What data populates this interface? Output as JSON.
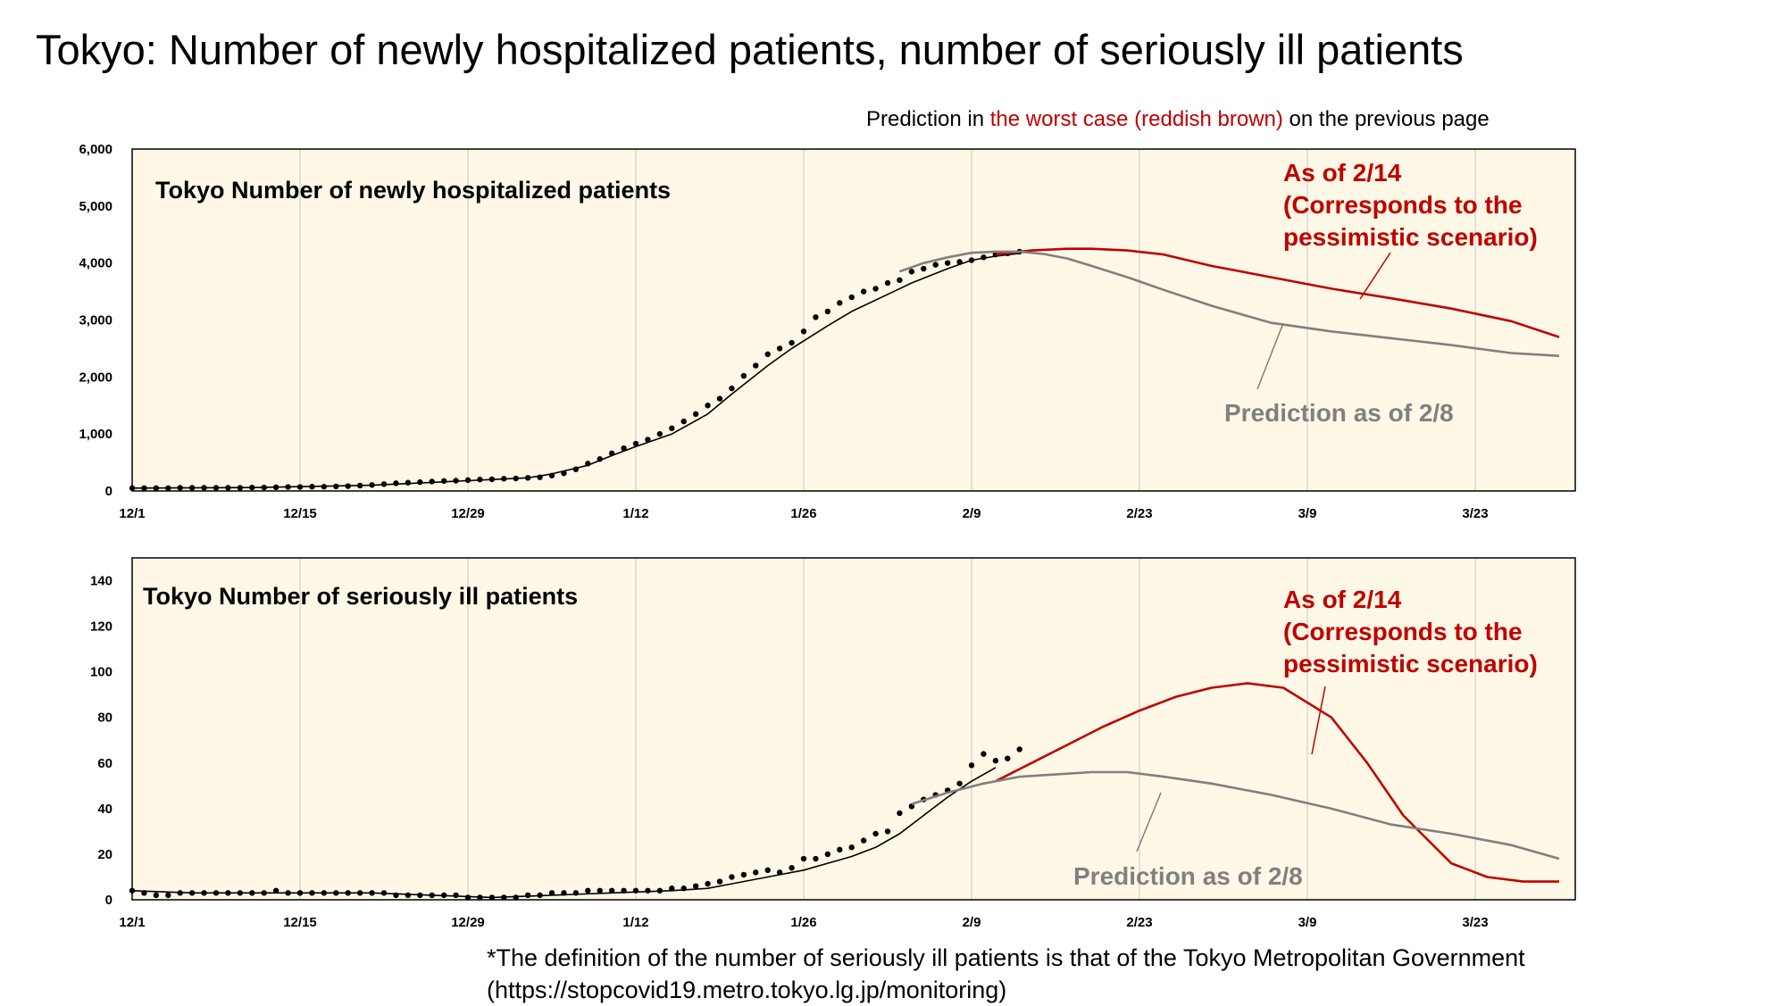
{
  "page": {
    "title": "Tokyo: Number of newly hospitalized patients, number of seriously ill patients",
    "subtitle_prefix": "Prediction in ",
    "subtitle_highlight": "the worst case (reddish brown)",
    "subtitle_suffix": " on the previous page",
    "footnote_line1": "*The definition of the number of seriously ill patients is that of the Tokyo Metropolitan Government",
    "footnote_line2": "(https://stopcovid19.metro.tokyo.lg.jp/monitoring)"
  },
  "colors": {
    "plot_background": "#fff8e6",
    "actual_points": "#000000",
    "fit_line": "#000000",
    "worst_case_line": "#c00000",
    "prediction_2_8_line": "#808080",
    "gridline": "#d0d0d0"
  },
  "chart_data": [
    {
      "type": "line",
      "title": "Tokyo  Number of newly hospitalized patients",
      "xlabel": "",
      "ylabel": "",
      "x_ticks": [
        "12/1",
        "12/15",
        "12/29",
        "1/12",
        "1/26",
        "2/9",
        "2/23",
        "3/9",
        "3/23"
      ],
      "y_ticks": [
        "0",
        "1,000",
        "2,000",
        "3,000",
        "4,000",
        "5,000",
        "6,000"
      ],
      "ylim": [
        0,
        6000
      ],
      "x_range_days_from_12_1": [
        0,
        119
      ],
      "grid": true,
      "annotations": [
        {
          "text": [
            "As of 2/14",
            "(Corresponds to the",
            "pessimistic scenario)"
          ],
          "color": "#c00000",
          "points_to": "As of 2/14"
        },
        {
          "text": [
            "Prediction as of 2/8"
          ],
          "color": "#808080",
          "points_to": "Prediction as of 2/8"
        }
      ],
      "series": [
        {
          "style": "points",
          "color": "#000000",
          "x": [
            0,
            1,
            2,
            3,
            4,
            5,
            6,
            7,
            8,
            9,
            10,
            11,
            12,
            13,
            14,
            15,
            16,
            17,
            18,
            19,
            20,
            21,
            22,
            23,
            24,
            25,
            26,
            27,
            28,
            29,
            30,
            31,
            32,
            33,
            34,
            35,
            36,
            37,
            38,
            39,
            40,
            41,
            42,
            43,
            44,
            45,
            46,
            47,
            48,
            49,
            50,
            51,
            52,
            53,
            54,
            55,
            56,
            57,
            58,
            59,
            60,
            61,
            62,
            63,
            64,
            65,
            66,
            67,
            68,
            69,
            70,
            71,
            72,
            73,
            74
          ],
          "values": [
            50,
            50,
            50,
            50,
            55,
            55,
            55,
            55,
            55,
            55,
            60,
            60,
            65,
            70,
            70,
            75,
            75,
            80,
            85,
            95,
            105,
            120,
            135,
            145,
            155,
            165,
            175,
            180,
            190,
            200,
            205,
            215,
            220,
            230,
            240,
            270,
            310,
            380,
            480,
            560,
            660,
            750,
            830,
            900,
            1000,
            1100,
            1220,
            1350,
            1500,
            1620,
            1800,
            2020,
            2200,
            2400,
            2500,
            2600,
            2800,
            3050,
            3150,
            3300,
            3400,
            3500,
            3550,
            3650,
            3700,
            3850,
            3900,
            3970,
            4000,
            4020,
            4050,
            4100,
            4150,
            4170,
            4200
          ]
        },
        {
          "name": "As of 2/14",
          "style": "line",
          "color": "#000000",
          "x": [
            0,
            10,
            20,
            25,
            30,
            33,
            35,
            38,
            40,
            42,
            45,
            48,
            50,
            53,
            55,
            58,
            60,
            63,
            65,
            68,
            70,
            72,
            74
          ],
          "values": [
            50,
            60,
            100,
            150,
            200,
            230,
            300,
            450,
            620,
            780,
            1000,
            1350,
            1700,
            2200,
            2500,
            2900,
            3150,
            3450,
            3650,
            3900,
            4050,
            4120,
            4170
          ]
        },
        {
          "name": "As of 2/14",
          "style": "line",
          "color": "#c00000",
          "x": [
            72,
            75,
            78,
            80,
            83,
            86,
            90,
            95,
            100,
            105,
            110,
            115,
            119
          ],
          "values": [
            4150,
            4220,
            4250,
            4250,
            4220,
            4150,
            3950,
            3750,
            3550,
            3380,
            3200,
            2980,
            2700
          ]
        },
        {
          "name": "Prediction as of 2/8",
          "style": "line",
          "color": "#808080",
          "x": [
            64,
            66,
            68,
            70,
            72,
            74,
            76,
            78,
            80,
            83,
            86,
            90,
            95,
            100,
            105,
            110,
            115,
            119
          ],
          "values": [
            3850,
            4000,
            4100,
            4180,
            4200,
            4200,
            4160,
            4080,
            3950,
            3750,
            3530,
            3250,
            2950,
            2800,
            2680,
            2560,
            2420,
            2370
          ]
        }
      ]
    },
    {
      "type": "line",
      "title": "Tokyo  Number of seriously ill patients",
      "xlabel": "",
      "ylabel": "",
      "x_ticks": [
        "12/1",
        "12/15",
        "12/29",
        "1/12",
        "1/26",
        "2/9",
        "2/23",
        "3/9",
        "3/23"
      ],
      "y_ticks": [
        "0",
        "20",
        "40",
        "60",
        "80",
        "100",
        "120",
        "140"
      ],
      "ylim": [
        0,
        150
      ],
      "x_range_days_from_12_1": [
        0,
        119
      ],
      "grid": true,
      "annotations": [
        {
          "text": [
            "As of 2/14",
            "(Corresponds to the",
            "pessimistic scenario)"
          ],
          "color": "#c00000",
          "points_to": "As of 2/14"
        },
        {
          "text": [
            "Prediction as of 2/8"
          ],
          "color": "#808080",
          "points_to": "Prediction as of 2/8"
        }
      ],
      "series": [
        {
          "style": "points",
          "color": "#000000",
          "x": [
            0,
            1,
            2,
            3,
            4,
            5,
            6,
            7,
            8,
            9,
            10,
            11,
            12,
            13,
            14,
            15,
            16,
            17,
            18,
            19,
            20,
            21,
            22,
            23,
            24,
            25,
            26,
            27,
            28,
            29,
            30,
            31,
            32,
            33,
            34,
            35,
            36,
            37,
            38,
            39,
            40,
            41,
            42,
            43,
            44,
            45,
            46,
            47,
            48,
            49,
            50,
            51,
            52,
            53,
            54,
            55,
            56,
            57,
            58,
            59,
            60,
            61,
            62,
            63,
            64,
            65,
            66,
            67,
            68,
            69,
            70,
            71,
            72,
            73,
            74
          ],
          "values": [
            4,
            3,
            2,
            2,
            3,
            3,
            3,
            3,
            3,
            3,
            3,
            3,
            4,
            3,
            3,
            3,
            3,
            3,
            3,
            3,
            3,
            3,
            2,
            2,
            2,
            2,
            2,
            2,
            1,
            1,
            1,
            1,
            1,
            2,
            2,
            3,
            3,
            3,
            4,
            4,
            4,
            4,
            4,
            4,
            4,
            5,
            5,
            6,
            7,
            8,
            10,
            11,
            12,
            13,
            12,
            14,
            18,
            18,
            20,
            22,
            23,
            26,
            29,
            30,
            38,
            41,
            44,
            46,
            48,
            51,
            59,
            64,
            61,
            62,
            66
          ]
        },
        {
          "name": "As of 2/14",
          "style": "line",
          "color": "#000000",
          "x": [
            0,
            5,
            10,
            15,
            20,
            25,
            30,
            35,
            40,
            45,
            48,
            50,
            52,
            54,
            56,
            58,
            60,
            62,
            64,
            66,
            68,
            70,
            72
          ],
          "values": [
            4,
            3,
            3,
            3,
            3,
            2,
            1,
            2,
            3,
            4,
            5,
            7,
            9,
            11,
            13,
            16,
            19,
            23,
            29,
            37,
            45,
            52,
            58
          ]
        },
        {
          "name": "As of 2/14",
          "style": "line",
          "color": "#c00000",
          "x": [
            72,
            75,
            78,
            81,
            84,
            87,
            90,
            93,
            96,
            100,
            103,
            106,
            110,
            113,
            116,
            119
          ],
          "values": [
            52,
            60,
            68,
            76,
            83,
            89,
            93,
            95,
            93,
            80,
            60,
            37,
            16,
            10,
            8,
            8
          ]
        },
        {
          "name": "Prediction as of 2/8",
          "style": "line",
          "color": "#808080",
          "x": [
            65,
            68,
            71,
            74,
            77,
            80,
            83,
            86,
            90,
            95,
            100,
            105,
            110,
            115,
            119
          ],
          "values": [
            42,
            47,
            51,
            54,
            55,
            56,
            56,
            54,
            51,
            46,
            40,
            33,
            29,
            24,
            18
          ]
        }
      ]
    }
  ]
}
